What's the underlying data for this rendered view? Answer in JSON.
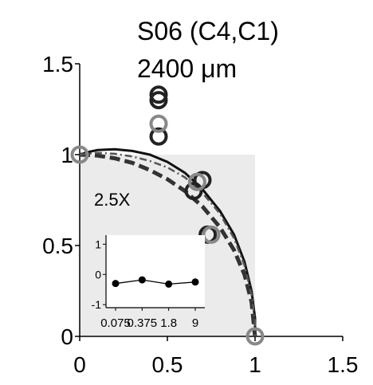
{
  "chart_data": {
    "type": "scatter",
    "title": "S06 (C4,C1)",
    "subtitle": "2400 μm",
    "xlabel": "",
    "ylabel": "",
    "xlim": [
      0,
      1.5
    ],
    "ylim": [
      0,
      1.5
    ],
    "x_tick_labels": [
      "0",
      "0.5",
      "1",
      "1.5"
    ],
    "y_tick_labels": [
      "0",
      "0.5",
      "1",
      "1.5"
    ],
    "x_ticks": [
      0,
      0.5,
      1,
      1.5
    ],
    "y_ticks": [
      0,
      0.5,
      1,
      1.5
    ],
    "grid": false,
    "shaded_region": {
      "x": [
        0,
        1
      ],
      "y": [
        0,
        1
      ],
      "color": "#ebebeb"
    },
    "curves": [
      {
        "style": "solid",
        "color": "#111111",
        "points": [
          [
            0,
            1
          ],
          [
            0.05,
            1.015
          ],
          [
            0.1,
            1.025
          ],
          [
            0.2,
            1.03
          ],
          [
            0.3,
            1.02
          ],
          [
            0.4,
            1.0
          ],
          [
            0.5,
            0.96
          ],
          [
            0.6,
            0.9
          ],
          [
            0.7,
            0.81
          ],
          [
            0.8,
            0.69
          ],
          [
            0.88,
            0.56
          ],
          [
            0.94,
            0.41
          ],
          [
            0.98,
            0.25
          ],
          [
            1.0,
            0.1
          ],
          [
            1.0,
            0
          ]
        ]
      },
      {
        "style": "dashed",
        "color": "#333333",
        "points": [
          [
            0,
            1
          ],
          [
            0.1,
            0.995
          ],
          [
            0.2,
            0.98
          ],
          [
            0.3,
            0.955
          ],
          [
            0.4,
            0.915
          ],
          [
            0.5,
            0.865
          ],
          [
            0.6,
            0.8
          ],
          [
            0.7,
            0.715
          ],
          [
            0.8,
            0.6
          ],
          [
            0.88,
            0.475
          ],
          [
            0.94,
            0.34
          ],
          [
            0.98,
            0.19
          ],
          [
            1.0,
            0
          ]
        ]
      },
      {
        "style": "dash-dot",
        "color": "#555555",
        "points": [
          [
            0,
            1
          ],
          [
            0.1,
            1.01
          ],
          [
            0.2,
            1.005
          ],
          [
            0.3,
            0.99
          ],
          [
            0.4,
            0.965
          ],
          [
            0.5,
            0.93
          ],
          [
            0.6,
            0.875
          ],
          [
            0.7,
            0.79
          ],
          [
            0.8,
            0.675
          ],
          [
            0.88,
            0.54
          ],
          [
            0.94,
            0.39
          ],
          [
            0.98,
            0.23
          ],
          [
            1.0,
            0.08
          ],
          [
            1.0,
            0
          ]
        ]
      }
    ],
    "series": [
      {
        "color": "#222222",
        "points": [
          [
            0.45,
            1.33
          ],
          [
            0.45,
            1.3
          ],
          [
            0.45,
            1.1
          ],
          [
            0.65,
            0.8
          ],
          [
            0.7,
            0.86
          ],
          [
            0.73,
            0.56
          ]
        ]
      },
      {
        "color": "#888888",
        "points": [
          [
            0.45,
            1.17
          ],
          [
            0.67,
            0.85
          ],
          [
            0.75,
            0.56
          ],
          [
            0,
            1
          ],
          [
            1,
            0
          ]
        ]
      }
    ],
    "annotation": "2.5X",
    "inset": {
      "type": "line",
      "categories": [
        "0.075",
        "0.375",
        "1.8",
        "9"
      ],
      "values": [
        -0.3,
        -0.18,
        -0.32,
        -0.25
      ],
      "ylim": [
        -1.1,
        1.3
      ],
      "y_tick_labels": [
        "1",
        "0",
        "-1"
      ],
      "y_ticks": [
        1,
        0,
        -1
      ]
    }
  }
}
